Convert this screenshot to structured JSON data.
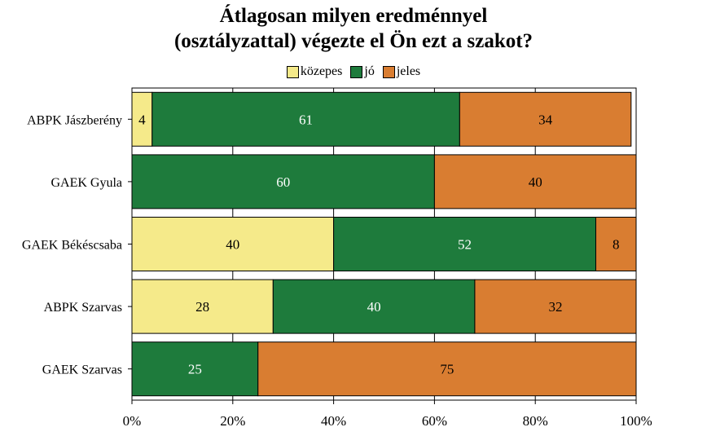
{
  "chart_data": {
    "type": "bar",
    "orientation": "horizontal",
    "stacked": true,
    "title_lines": [
      "Átlagosan milyen eredménnyel",
      "(osztályzattal) végezte el Ön ezt a szakot?"
    ],
    "categories": [
      "ABPK Jászberény",
      "GAEK Gyula",
      "GAEK Békéscsaba",
      "ABPK Szarvas",
      "GAEK Szarvas"
    ],
    "series": [
      {
        "name": "közepes",
        "color": "#f5ea8a",
        "label_color": "#000000",
        "values": [
          4,
          0,
          40,
          28,
          0
        ]
      },
      {
        "name": "jó",
        "color": "#1e7b3c",
        "label_color": "#ffffff",
        "values": [
          61,
          60,
          52,
          40,
          25
        ]
      },
      {
        "name": "jeles",
        "color": "#d97d31",
        "label_color": "#000000",
        "values": [
          34,
          40,
          8,
          32,
          75
        ]
      }
    ],
    "xlim": [
      0,
      100
    ],
    "x_ticks": [
      "0%",
      "20%",
      "40%",
      "60%",
      "80%",
      "100%"
    ],
    "grid": true,
    "legend_position": "top"
  }
}
